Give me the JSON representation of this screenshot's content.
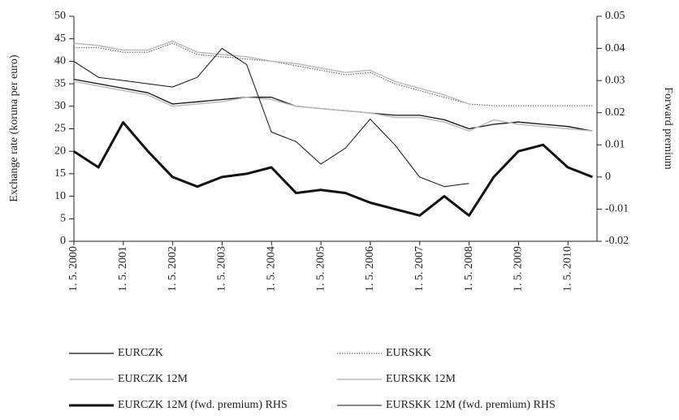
{
  "chart_data": {
    "type": "line",
    "ylabel": "Exchange rate (koruna per euro)",
    "y2label": "Forward premium",
    "x": [
      2000.33,
      2000.83,
      2001.33,
      2001.83,
      2002.33,
      2002.83,
      2003.33,
      2003.83,
      2004.33,
      2004.83,
      2005.33,
      2005.83,
      2006.33,
      2006.83,
      2007.33,
      2007.83,
      2008.33,
      2008.83,
      2009.33,
      2009.83,
      2010.33,
      2010.83
    ],
    "xlim": [
      2000.333,
      2010.92
    ],
    "xticks": [
      {
        "value": 2000.333,
        "label": "1. 5. 2000"
      },
      {
        "value": 2001.333,
        "label": "1. 5. 2001"
      },
      {
        "value": 2002.333,
        "label": "1. 5. 2002"
      },
      {
        "value": 2003.333,
        "label": "1. 5. 2003"
      },
      {
        "value": 2004.333,
        "label": "1. 5. 2004"
      },
      {
        "value": 2005.333,
        "label": "1. 5. 2005"
      },
      {
        "value": 2006.333,
        "label": "1. 5. 2006"
      },
      {
        "value": 2007.333,
        "label": "1. 5. 2007"
      },
      {
        "value": 2008.333,
        "label": "1. 5. 2008"
      },
      {
        "value": 2009.333,
        "label": "1. 5. 2009"
      },
      {
        "value": 2010.333,
        "label": "1. 5. 2010"
      }
    ],
    "ylim": [
      0,
      50
    ],
    "yticks": [
      0,
      5,
      10,
      15,
      20,
      25,
      30,
      35,
      40,
      45,
      50
    ],
    "y2lim": [
      -0.02,
      0.05
    ],
    "y2ticks": [
      -0.02,
      -0.01,
      0,
      0.01,
      0.02,
      0.03,
      0.04,
      0.05
    ],
    "series": [
      {
        "name": "EURCZK",
        "color": "#111111",
        "width": 1.3,
        "style": "solid",
        "values": [
          36,
          35,
          34,
          33,
          30.5,
          31,
          31.5,
          32,
          32,
          30,
          29.5,
          29,
          28.5,
          28,
          28,
          27,
          25,
          26,
          26.5,
          26,
          25.5,
          24.5
        ]
      },
      {
        "name": "EURSKK",
        "color": "#555555",
        "width": 1,
        "style": "dotted",
        "values": [
          43,
          43,
          42,
          42,
          44,
          41.5,
          41,
          40.5,
          40,
          39,
          38,
          37,
          37.5,
          35,
          33.5,
          32,
          30.5,
          30.126,
          30.126,
          30.126,
          30.126,
          30.126
        ]
      },
      {
        "name": "EURCZK 12M",
        "color": "#bbbbbb",
        "width": 1.5,
        "style": "solid",
        "values": [
          35.5,
          34.5,
          33.5,
          32.5,
          30,
          30.5,
          31,
          32,
          31.5,
          30,
          29.5,
          29,
          28.5,
          27.5,
          27.5,
          26.5,
          24.5,
          27,
          26,
          25.5,
          25,
          24.5
        ]
      },
      {
        "name": "EURSKK 12M",
        "color": "#bbbbbb",
        "width": 1.5,
        "style": "solid",
        "values": [
          44,
          43.5,
          42.5,
          42.5,
          44.5,
          42,
          41.5,
          41,
          40,
          39.5,
          38.5,
          37.5,
          38,
          35.5,
          34,
          32.5,
          30.5,
          null,
          null,
          null,
          null,
          null
        ]
      },
      {
        "name": "EURCZK 12M (fwd. premium) RHS",
        "color": "#111111",
        "width": 3,
        "style": "solid",
        "axis": "y2",
        "values": [
          0.008,
          0.003,
          0.017,
          0.008,
          0,
          -0.003,
          0,
          0.001,
          0.003,
          -0.005,
          -0.004,
          -0.005,
          -0.008,
          -0.01,
          -0.012,
          -0.006,
          -0.012,
          0,
          0.008,
          0.01,
          0.003,
          0
        ]
      },
      {
        "name": "EURSKK 12M (fwd. premium) RHS",
        "color": "#111111",
        "width": 1,
        "style": "solid",
        "axis": "y2",
        "values": [
          0.036,
          0.031,
          0.03,
          0.029,
          0.028,
          0.031,
          0.04,
          0.035,
          0.014,
          0.011,
          0.004,
          0.009,
          0.018,
          0.01,
          0,
          -0.003,
          -0.002,
          null,
          null,
          null,
          null,
          null
        ]
      }
    ]
  }
}
